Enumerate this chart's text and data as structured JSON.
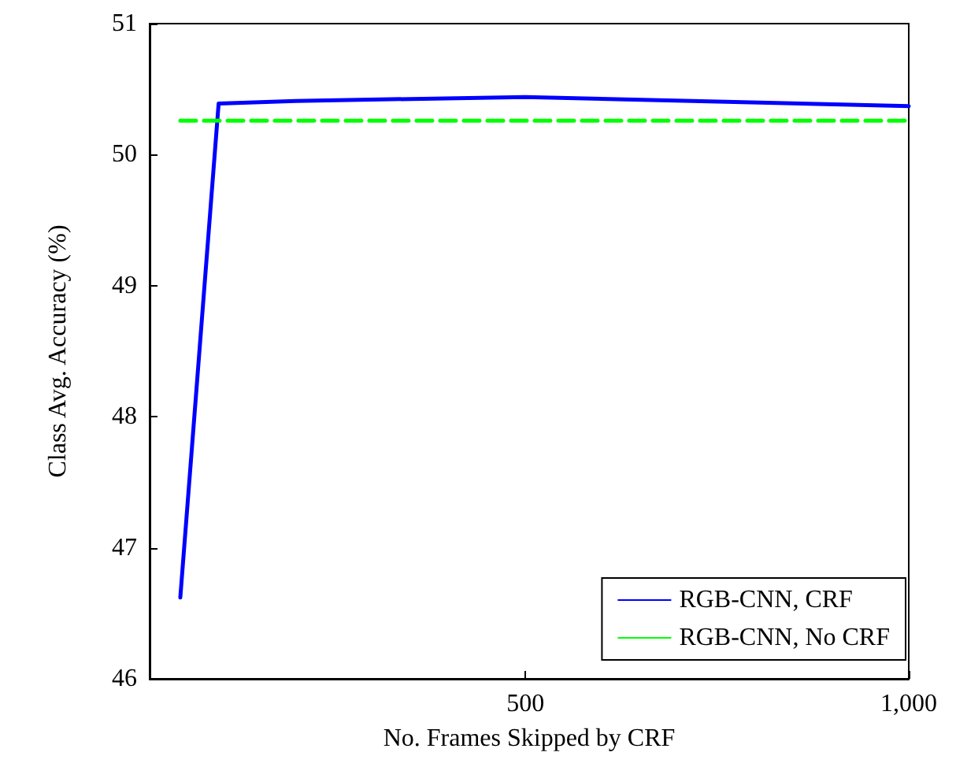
{
  "chart_data": {
    "type": "line",
    "xlabel": "No. Frames Skipped by CRF",
    "ylabel": "Class Avg. Accuracy (%)",
    "xlim": [
      10,
      1000
    ],
    "xticks": [
      500,
      {
        "value": 1000,
        "label": "1,000"
      }
    ],
    "ylim": [
      46,
      51
    ],
    "yticks": [
      46,
      47,
      48,
      49,
      50,
      51
    ],
    "series": [
      {
        "name": "RGB-CNN, CRF",
        "color": "#0000ff",
        "x": [
          50,
          100,
          200,
          500,
          1000
        ],
        "values": [
          46.62,
          50.39,
          50.41,
          50.44,
          50.37
        ],
        "line_style": "solid"
      },
      {
        "name": "RGB-CNN, No CRF",
        "color": "#00ff00",
        "x": [
          50,
          1000
        ],
        "values": [
          50.26,
          50.26
        ],
        "line_style": "dashed"
      }
    ],
    "legend": "bottom right",
    "grid": false,
    "marker": "none"
  }
}
